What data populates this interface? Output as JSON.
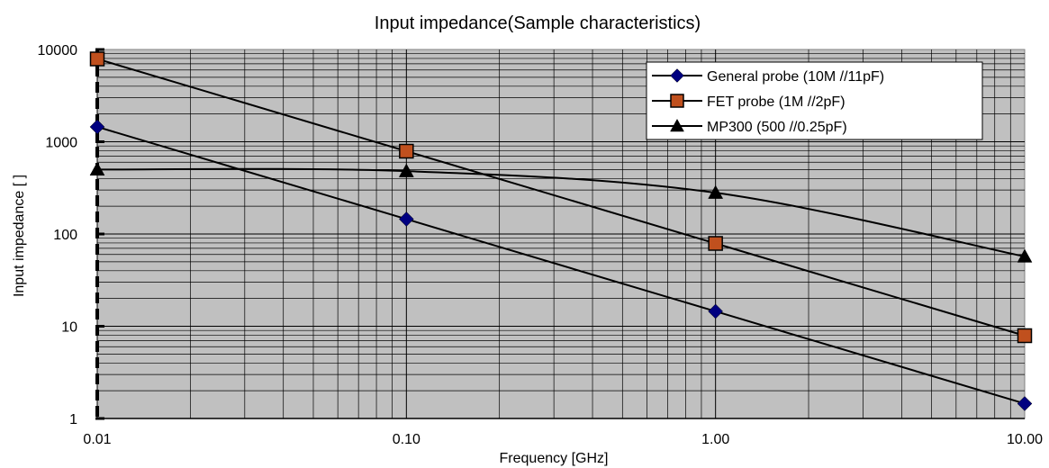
{
  "chart_data": {
    "type": "line",
    "title": "Input impedance(Sample characteristics)",
    "xlabel": "Frequency [GHz]",
    "ylabel": "Input impedance [ ]",
    "x_scale": "log",
    "y_scale": "log",
    "xlim": [
      0.01,
      10
    ],
    "ylim": [
      1,
      10000
    ],
    "x_ticks": [
      "0.01",
      "0.10",
      "1.00",
      "10.00"
    ],
    "y_ticks": [
      "1",
      "10",
      "100",
      "1000",
      "10000"
    ],
    "grid": true,
    "legend_position": "top-right",
    "plot_background": "#c0c0c0",
    "series": [
      {
        "name": "General probe (10M //11pF)",
        "marker": "diamond",
        "color": "#000080",
        "x": [
          0.01,
          0.1,
          1,
          10
        ],
        "y": [
          1450,
          145,
          14.5,
          1.45
        ]
      },
      {
        "name": "FET probe (1M //2pF)",
        "marker": "square",
        "color": "#c0501e",
        "x": [
          0.01,
          0.1,
          1,
          10
        ],
        "y": [
          7900,
          790,
          79,
          7.9
        ]
      },
      {
        "name": "MP300 (500 //0.25pF)",
        "marker": "triangle",
        "color": "#000000",
        "x": [
          0.01,
          0.1,
          1,
          10
        ],
        "y": [
          500,
          480,
          280,
          57
        ]
      }
    ]
  }
}
